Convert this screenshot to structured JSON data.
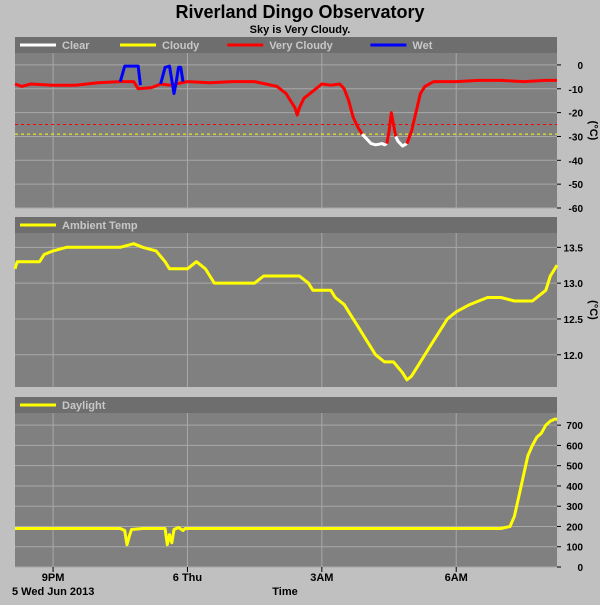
{
  "title": "Riverland Dingo Observatory",
  "subtitle": "Sky is Very Cloudy.",
  "footer": {
    "date_label": "5 Wed Jun 2013",
    "xlabel": "Time"
  },
  "x_ticks": [
    {
      "label": "9PM",
      "x": 0
    },
    {
      "label": "6 Thu",
      "x": 3
    },
    {
      "label": "3AM",
      "x": 6
    },
    {
      "label": "6AM",
      "x": 9
    }
  ],
  "x_range": [
    -0.85,
    11.25
  ],
  "colors": {
    "background": "#c0c0c0",
    "plot": "#808080",
    "grid": "#a8a8a8",
    "clear": "#ffffff",
    "cloudy": "#ffff00",
    "very_cloudy": "#ff0000",
    "wet": "#0000ff",
    "ambient": "#ffff00",
    "daylight": "#ffff00"
  },
  "chart_data": [
    {
      "type": "line",
      "name": "sky-temperature",
      "ylabel": "(°C)",
      "ylim": [
        -60,
        5
      ],
      "yticks": [
        0,
        -10,
        -20,
        -30,
        -40,
        -50,
        -60
      ],
      "thresholds": [
        {
          "y": -25,
          "color": "#ff0000",
          "style": "dashed"
        },
        {
          "y": -29,
          "color": "#ffff00",
          "style": "dashed"
        }
      ],
      "legend": [
        {
          "label": "Clear",
          "color": "#ffffff"
        },
        {
          "label": "Cloudy",
          "color": "#ffff00"
        },
        {
          "label": "Very Cloudy",
          "color": "#ff0000"
        },
        {
          "label": "Wet",
          "color": "#0000ff"
        }
      ],
      "series": [
        {
          "color": "#ff0000",
          "points": [
            [
              -0.85,
              -8
            ],
            [
              -0.7,
              -9
            ],
            [
              -0.5,
              -8
            ],
            [
              0,
              -8.5
            ],
            [
              0.5,
              -8.5
            ],
            [
              1,
              -7.5
            ],
            [
              1.5,
              -7
            ],
            [
              1.8,
              -7
            ],
            [
              1.9,
              -10
            ],
            [
              2.2,
              -9.5
            ],
            [
              2.4,
              -8
            ],
            [
              2.6,
              -8.5
            ],
            [
              3,
              -7
            ],
            [
              3.5,
              -7.5
            ],
            [
              4,
              -7
            ],
            [
              4.5,
              -7
            ],
            [
              5,
              -9
            ],
            [
              5.2,
              -12
            ],
            [
              5.4,
              -18
            ],
            [
              5.45,
              -21
            ],
            [
              5.5,
              -18
            ],
            [
              5.6,
              -14
            ],
            [
              5.8,
              -11
            ],
            [
              6,
              -8
            ],
            [
              6.2,
              -8.5
            ],
            [
              6.4,
              -8
            ],
            [
              6.5,
              -10
            ],
            [
              6.6,
              -15
            ],
            [
              6.7,
              -22
            ],
            [
              6.8,
              -26
            ],
            [
              6.9,
              -29
            ]
          ]
        },
        {
          "color": "#ffffff",
          "points": [
            [
              6.9,
              -29
            ],
            [
              7,
              -31
            ],
            [
              7.1,
              -33
            ],
            [
              7.2,
              -33.5
            ],
            [
              7.35,
              -33
            ],
            [
              7.4,
              -33.5
            ],
            [
              7.45,
              -33
            ]
          ]
        },
        {
          "color": "#ff0000",
          "points": [
            [
              7.45,
              -33
            ],
            [
              7.5,
              -28
            ],
            [
              7.55,
              -20
            ],
            [
              7.6,
              -25
            ],
            [
              7.65,
              -30
            ]
          ]
        },
        {
          "color": "#ffffff",
          "points": [
            [
              7.65,
              -30
            ],
            [
              7.7,
              -32
            ],
            [
              7.8,
              -34
            ],
            [
              7.9,
              -33
            ]
          ]
        },
        {
          "color": "#ff0000",
          "points": [
            [
              7.9,
              -33
            ],
            [
              8,
              -28
            ],
            [
              8.1,
              -20
            ],
            [
              8.2,
              -12
            ],
            [
              8.3,
              -9
            ],
            [
              8.5,
              -7
            ],
            [
              9,
              -7
            ],
            [
              9.5,
              -6.5
            ],
            [
              10,
              -6.5
            ],
            [
              10.5,
              -7
            ],
            [
              11,
              -6.5
            ],
            [
              11.25,
              -6.5
            ]
          ]
        },
        {
          "color": "#0000ff",
          "points": [
            [
              1.5,
              -7
            ],
            [
              1.6,
              -0.5
            ],
            [
              1.9,
              -0.5
            ],
            [
              1.95,
              -8.5
            ]
          ]
        },
        {
          "color": "#0000ff",
          "points": [
            [
              2.4,
              -8
            ],
            [
              2.5,
              -1
            ],
            [
              2.6,
              -0.5
            ],
            [
              2.7,
              -12
            ],
            [
              2.75,
              -7
            ]
          ]
        },
        {
          "color": "#0000ff",
          "points": [
            [
              2.75,
              -7
            ],
            [
              2.8,
              -1
            ],
            [
              2.85,
              -1
            ],
            [
              2.9,
              -7
            ]
          ]
        }
      ]
    },
    {
      "type": "line",
      "name": "ambient-temperature",
      "ylabel": "(°C)",
      "ylim": [
        11.55,
        13.7
      ],
      "yticks": [
        12.0,
        12.5,
        13.0,
        13.5
      ],
      "legend": [
        {
          "label": "Ambient Temp",
          "color": "#ffff00"
        }
      ],
      "series": [
        {
          "color": "#ffff00",
          "points": [
            [
              -0.85,
              13.2
            ],
            [
              -0.8,
              13.3
            ],
            [
              -0.3,
              13.3
            ],
            [
              -0.2,
              13.4
            ],
            [
              0,
              13.45
            ],
            [
              0.3,
              13.5
            ],
            [
              0.8,
              13.5
            ],
            [
              1.2,
              13.5
            ],
            [
              1.5,
              13.5
            ],
            [
              1.8,
              13.55
            ],
            [
              2,
              13.5
            ],
            [
              2.3,
              13.45
            ],
            [
              2.5,
              13.3
            ],
            [
              2.6,
              13.2
            ],
            [
              3,
              13.2
            ],
            [
              3.2,
              13.3
            ],
            [
              3.4,
              13.2
            ],
            [
              3.5,
              13.1
            ],
            [
              3.6,
              13
            ],
            [
              4,
              13
            ],
            [
              4.5,
              13
            ],
            [
              4.7,
              13.1
            ],
            [
              5,
              13.1
            ],
            [
              5.5,
              13.1
            ],
            [
              5.7,
              13
            ],
            [
              5.8,
              12.9
            ],
            [
              6.2,
              12.9
            ],
            [
              6.3,
              12.8
            ],
            [
              6.5,
              12.7
            ],
            [
              6.6,
              12.6
            ],
            [
              6.8,
              12.4
            ],
            [
              7,
              12.2
            ],
            [
              7.2,
              12
            ],
            [
              7.4,
              11.9
            ],
            [
              7.6,
              11.9
            ],
            [
              7.8,
              11.75
            ],
            [
              7.9,
              11.65
            ],
            [
              8,
              11.7
            ],
            [
              8.2,
              11.9
            ],
            [
              8.4,
              12.1
            ],
            [
              8.6,
              12.3
            ],
            [
              8.8,
              12.5
            ],
            [
              9,
              12.6
            ],
            [
              9.3,
              12.7
            ],
            [
              9.5,
              12.75
            ],
            [
              9.7,
              12.8
            ],
            [
              10,
              12.8
            ],
            [
              10.3,
              12.75
            ],
            [
              10.7,
              12.75
            ],
            [
              11,
              12.9
            ],
            [
              11.1,
              13.1
            ],
            [
              11.2,
              13.2
            ],
            [
              11.25,
              13.25
            ]
          ]
        }
      ]
    },
    {
      "type": "line",
      "name": "daylight",
      "ylim": [
        0,
        760
      ],
      "yticks": [
        0,
        100,
        200,
        300,
        400,
        500,
        600,
        700
      ],
      "legend": [
        {
          "label": "Daylight",
          "color": "#ffff00"
        }
      ],
      "series": [
        {
          "color": "#ffff00",
          "points": [
            [
              -0.85,
              190
            ],
            [
              0,
              190
            ],
            [
              1.5,
              190
            ],
            [
              1.6,
              180
            ],
            [
              1.65,
              110
            ],
            [
              1.7,
              150
            ],
            [
              1.75,
              185
            ],
            [
              2,
              190
            ],
            [
              2.5,
              190
            ],
            [
              2.55,
              110
            ],
            [
              2.6,
              160
            ],
            [
              2.65,
              120
            ],
            [
              2.7,
              185
            ],
            [
              2.8,
              195
            ],
            [
              2.9,
              180
            ],
            [
              2.95,
              190
            ],
            [
              3.5,
              190
            ],
            [
              5,
              190
            ],
            [
              7,
              190
            ],
            [
              9,
              190
            ],
            [
              10,
              190
            ],
            [
              10.2,
              200
            ],
            [
              10.3,
              250
            ],
            [
              10.4,
              350
            ],
            [
              10.5,
              450
            ],
            [
              10.6,
              550
            ],
            [
              10.7,
              600
            ],
            [
              10.8,
              640
            ],
            [
              10.9,
              660
            ],
            [
              11,
              700
            ],
            [
              11.1,
              720
            ],
            [
              11.2,
              730
            ],
            [
              11.25,
              730
            ]
          ]
        }
      ]
    }
  ]
}
